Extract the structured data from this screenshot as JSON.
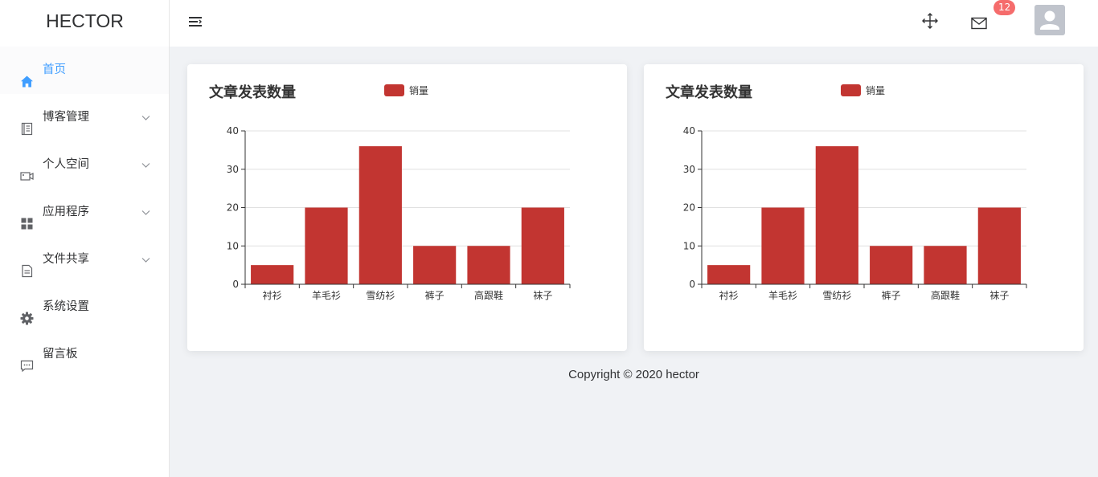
{
  "app": {
    "logo_text": "HECTOR"
  },
  "sidebar": {
    "items": [
      {
        "label": "首页",
        "icon": "home-icon",
        "active": true,
        "has_children": false
      },
      {
        "label": "博客管理",
        "icon": "document-icon",
        "active": false,
        "has_children": true
      },
      {
        "label": "个人空间",
        "icon": "video-camera-icon",
        "active": false,
        "has_children": true
      },
      {
        "label": "应用程序",
        "icon": "grid-icon",
        "active": false,
        "has_children": true
      },
      {
        "label": "文件共享",
        "icon": "file-icon",
        "active": false,
        "has_children": true
      },
      {
        "label": "系统设置",
        "icon": "gear-icon",
        "active": false,
        "has_children": false
      },
      {
        "label": "留言板",
        "icon": "chat-icon",
        "active": false,
        "has_children": false
      }
    ]
  },
  "header": {
    "toggle_icon": "hamburger-icon",
    "move_icon": "move-icon",
    "mail_icon": "mail-icon",
    "notification_count": "12",
    "avatar_icon": "user-avatar-icon"
  },
  "colors": {
    "accent": "#409eff",
    "bar": "#c23531",
    "badge": "#f56c6c",
    "page_bg": "#f0f2f5"
  },
  "chart_data": [
    {
      "type": "bar",
      "title": "文章发表数量",
      "legend": [
        "销量"
      ],
      "legend_position": "top",
      "categories": [
        "衬衫",
        "羊毛衫",
        "雪纺衫",
        "裤子",
        "高跟鞋",
        "袜子"
      ],
      "series": [
        {
          "name": "销量",
          "values": [
            5,
            20,
            36,
            10,
            10,
            20
          ]
        }
      ],
      "ylim": [
        0,
        40
      ],
      "yticks": [
        0,
        10,
        20,
        30,
        40
      ],
      "grid": true
    },
    {
      "type": "bar",
      "title": "文章发表数量",
      "legend": [
        "销量"
      ],
      "legend_position": "top",
      "categories": [
        "衬衫",
        "羊毛衫",
        "雪纺衫",
        "裤子",
        "高跟鞋",
        "袜子"
      ],
      "series": [
        {
          "name": "销量",
          "values": [
            5,
            20,
            36,
            10,
            10,
            20
          ]
        }
      ],
      "ylim": [
        0,
        40
      ],
      "yticks": [
        0,
        10,
        20,
        30,
        40
      ],
      "grid": true
    }
  ],
  "footer": {
    "copyright": "Copyright © 2020 hector"
  }
}
